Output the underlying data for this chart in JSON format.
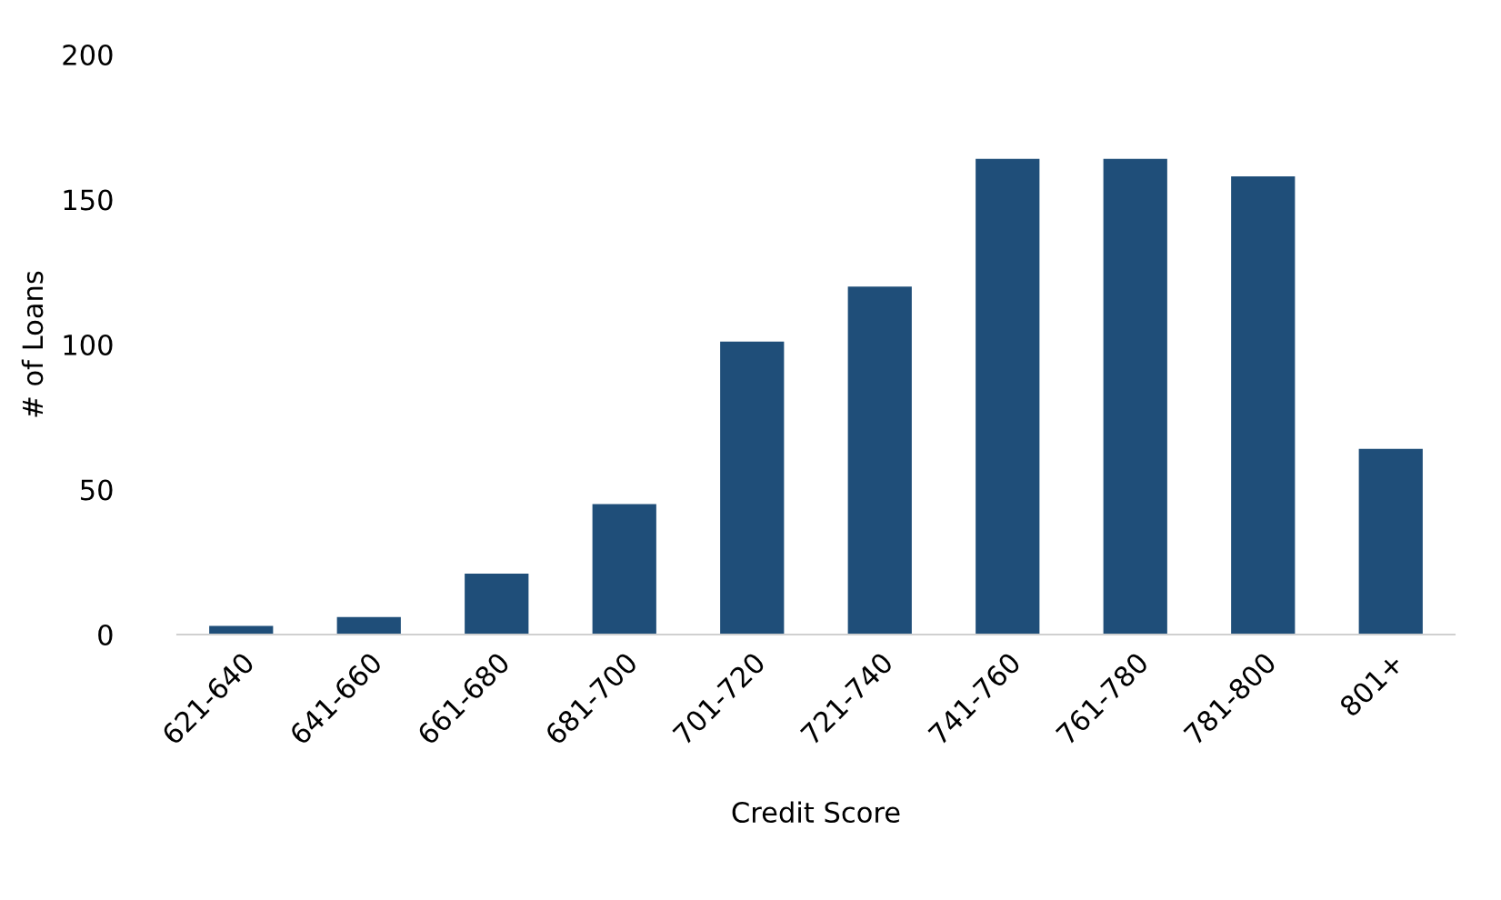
{
  "chart_data": {
    "type": "bar",
    "xlabel": "Credit Score",
    "ylabel": "# of Loans",
    "categories": [
      "621-640",
      "641-660",
      "661-680",
      "681-700",
      "701-720",
      "721-740",
      "741-760",
      "761-780",
      "781-800",
      "801+"
    ],
    "values": [
      3,
      6,
      21,
      45,
      101,
      120,
      164,
      164,
      158,
      64
    ],
    "color": "#1f4e79",
    "ylim": [
      0,
      200
    ],
    "yticks": [
      0,
      50,
      100,
      150,
      200
    ],
    "grid": false
  }
}
